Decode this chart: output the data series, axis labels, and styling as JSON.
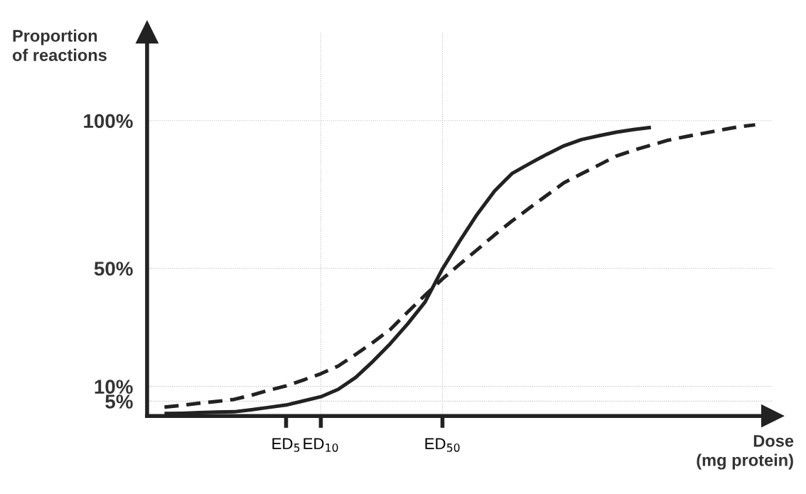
{
  "chart_data": {
    "type": "line",
    "ylabel": "Proportion\nof reactions",
    "xlabel": "Dose\n(mg protein)",
    "categories": [
      null,
      null,
      null,
      null,
      null,
      null,
      null,
      null,
      "ED$_{5}$",
      null,
      "ED$_{10}$",
      null,
      null,
      null,
      null,
      null,
      null,
      "ED$_{50}$",
      null,
      null,
      null,
      null,
      null,
      null,
      null,
      null,
      null,
      null,
      null,
      null,
      null,
      null,
      null,
      null,
      null,
      null
    ],
    "ylim": [
      0,
      130
    ],
    "yticks": [
      {
        "value": 5,
        "label": "5%"
      },
      {
        "value": 10,
        "label": "10%"
      },
      {
        "value": 50,
        "label": "50%"
      },
      {
        "value": 100,
        "label": "100%"
      }
    ],
    "series": [
      {
        "color": "#222222",
        "line_style": "solid",
        "values": [
          null,
          0.8,
          0.9,
          1.1,
          1.3,
          1.4,
          2.1,
          2.9,
          3.7,
          5.1,
          6.5,
          9.0,
          13.0,
          18.5,
          24.5,
          31.2,
          38.6,
          49.8,
          59.3,
          68.3,
          76.2,
          82.1,
          85.4,
          88.6,
          91.5,
          93.6,
          94.9,
          96.1,
          97.0,
          97.7,
          null,
          null,
          null,
          null,
          null,
          null
        ]
      },
      {
        "color": "#222222",
        "line_style": "dashed",
        "values": [
          null,
          3.0,
          3.6,
          4.3,
          4.9,
          5.6,
          7.0,
          8.7,
          10.2,
          12.2,
          14.3,
          16.9,
          20.8,
          24.9,
          29.3,
          35.2,
          40.9,
          46.4,
          51.4,
          56.3,
          61.3,
          66.0,
          70.4,
          74.7,
          79.0,
          82.0,
          85.0,
          88.0,
          90.0,
          91.7,
          93.4,
          94.6,
          95.7,
          96.8,
          97.9,
          98.6
        ]
      }
    ],
    "ref_lines": [
      {
        "axis": "y",
        "value": 100,
        "color": "#bbbbbb",
        "line_style": "dotted"
      },
      {
        "axis": "y",
        "value": 50,
        "color": "#bbbbbb",
        "line_style": "dotted"
      },
      {
        "axis": "y",
        "value": 10,
        "color": "#bbbbbb",
        "line_style": "dotted"
      },
      {
        "axis": "y",
        "value": 5,
        "color": "#bbbbbb",
        "line_style": "dotted"
      },
      {
        "axis": "x",
        "value": "ED$_{10}$",
        "color": "#bbbbbb",
        "line_style": "dotted"
      },
      {
        "axis": "x",
        "value": "ED$_{50}$",
        "color": "#bbbbbb",
        "line_style": "dotted"
      }
    ],
    "grid": false,
    "legend": false,
    "marker": "none"
  }
}
